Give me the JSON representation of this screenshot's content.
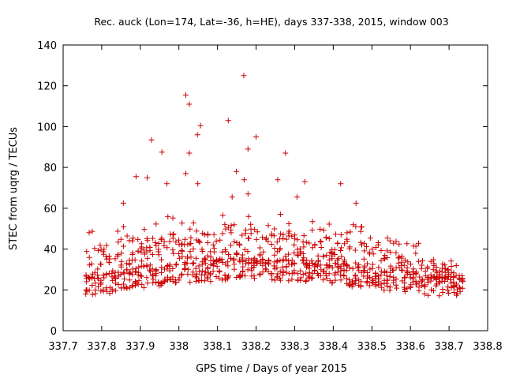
{
  "chart_data": {
    "type": "scatter",
    "title": "Rec. auck (Lon=174, Lat=-36, h=HE), days 337-338, 2015, window 003",
    "xlabel": "GPS time / Days of year 2015",
    "ylabel": "STEC from uqrg / TECUs",
    "xlim": [
      337.7,
      338.8
    ],
    "ylim": [
      0,
      140
    ],
    "x_ticks": [
      337.7,
      337.8,
      337.9,
      338.0,
      338.1,
      338.2,
      338.3,
      338.4,
      338.5,
      338.6,
      338.7,
      338.8
    ],
    "x_tick_labels": [
      "337.7",
      "337.8",
      "337.9",
      "338",
      "338.1",
      "338.2",
      "338.3",
      "338.4",
      "338.5",
      "338.6",
      "338.7",
      "338.8"
    ],
    "y_ticks": [
      0,
      20,
      40,
      60,
      80,
      100,
      120,
      140
    ],
    "y_tick_labels": [
      "0",
      "20",
      "40",
      "60",
      "80",
      "100",
      "120",
      "140"
    ],
    "grid": false,
    "legend": "none",
    "marker": "+",
    "color": "#cc0000",
    "x_range": [
      337.76,
      338.735
    ],
    "sampling_interval_days": 0.0075,
    "outliers": [
      {
        "x": 338.018,
        "y": 115.5
      },
      {
        "x": 338.027,
        "y": 111
      },
      {
        "x": 338.168,
        "y": 125
      },
      {
        "x": 338.128,
        "y": 103
      },
      {
        "x": 338.179,
        "y": 89
      },
      {
        "x": 338.2,
        "y": 95
      },
      {
        "x": 338.048,
        "y": 96
      },
      {
        "x": 338.056,
        "y": 100.5
      },
      {
        "x": 337.929,
        "y": 93.5
      },
      {
        "x": 337.956,
        "y": 87.5
      },
      {
        "x": 338.276,
        "y": 87
      },
      {
        "x": 337.889,
        "y": 75.5
      },
      {
        "x": 337.918,
        "y": 75
      },
      {
        "x": 338.018,
        "y": 77
      },
      {
        "x": 338.027,
        "y": 87
      },
      {
        "x": 338.149,
        "y": 78
      },
      {
        "x": 338.169,
        "y": 74
      },
      {
        "x": 338.419,
        "y": 72
      },
      {
        "x": 338.049,
        "y": 72
      },
      {
        "x": 337.969,
        "y": 72
      },
      {
        "x": 338.256,
        "y": 74
      },
      {
        "x": 338.326,
        "y": 73
      },
      {
        "x": 338.179,
        "y": 67
      },
      {
        "x": 338.306,
        "y": 65.5
      },
      {
        "x": 338.138,
        "y": 65.5
      },
      {
        "x": 337.856,
        "y": 62.5
      },
      {
        "x": 338.459,
        "y": 62.5
      }
    ]
  }
}
